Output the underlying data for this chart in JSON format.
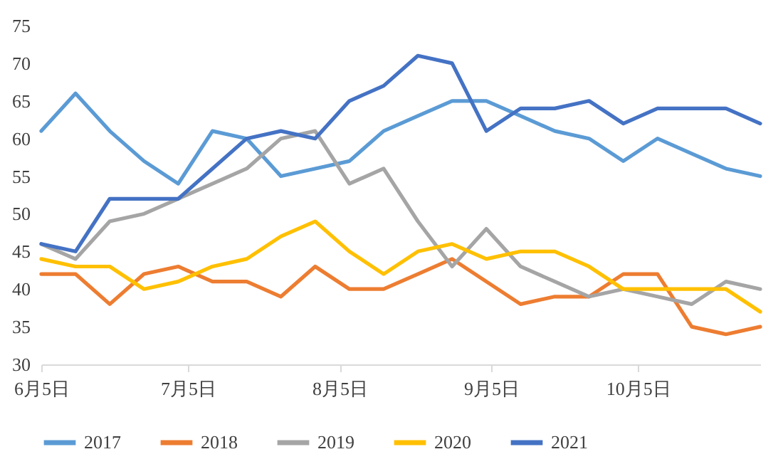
{
  "chart_data": {
    "type": "line",
    "x": [
      "--06-05",
      "--06-12",
      "--06-19",
      "--06-26",
      "--07-03",
      "--07-10",
      "--07-17",
      "--07-24",
      "--07-31",
      "--08-07",
      "--08-14",
      "--08-21",
      "--08-28",
      "--09-04",
      "--09-11",
      "--09-18",
      "--09-25",
      "--10-02",
      "--10-09",
      "--10-16",
      "--10-23",
      "--10-30"
    ],
    "series": [
      {
        "name": "2017",
        "color": "#5b9bd5",
        "values": [
          61,
          66,
          61,
          57,
          54,
          61,
          60,
          55,
          56,
          57,
          61,
          63,
          65,
          65,
          63,
          61,
          60,
          57,
          60,
          58,
          56,
          55
        ]
      },
      {
        "name": "2018",
        "color": "#ed7d31",
        "values": [
          42,
          42,
          38,
          42,
          43,
          41,
          41,
          39,
          43,
          40,
          40,
          42,
          44,
          41,
          38,
          39,
          39,
          42,
          42,
          35,
          34,
          35
        ]
      },
      {
        "name": "2019",
        "color": "#a5a5a5",
        "values": [
          46,
          44,
          49,
          50,
          52,
          54,
          56,
          60,
          61,
          54,
          56,
          49,
          43,
          48,
          43,
          41,
          39,
          40,
          39,
          38,
          41,
          40
        ]
      },
      {
        "name": "2020",
        "color": "#ffc000",
        "values": [
          44,
          43,
          43,
          40,
          41,
          43,
          44,
          47,
          49,
          45,
          42,
          45,
          46,
          44,
          45,
          45,
          43,
          40,
          40,
          40,
          40,
          37
        ]
      },
      {
        "name": "2021",
        "color": "#4472c4",
        "values": [
          46,
          45,
          52,
          52,
          52,
          56,
          60,
          61,
          60,
          65,
          67,
          71,
          70,
          61,
          64,
          64,
          65,
          62,
          64,
          64,
          64,
          62
        ]
      }
    ],
    "xlim": [
      "--06-05",
      "--10-30"
    ],
    "xticks": [
      {
        "value": "--06-05",
        "label": "6月5日"
      },
      {
        "value": "--07-05",
        "label": "7月5日"
      },
      {
        "value": "--08-05",
        "label": "8月5日"
      },
      {
        "value": "--09-05",
        "label": "9月5日"
      },
      {
        "value": "--10-05",
        "label": "10月5日"
      }
    ],
    "ylim": [
      30,
      75
    ],
    "yticks": [
      30,
      35,
      40,
      45,
      50,
      55,
      60,
      65,
      70,
      75
    ],
    "grid": false,
    "legend": "bottom",
    "marker": "none",
    "line_style": "solid"
  }
}
